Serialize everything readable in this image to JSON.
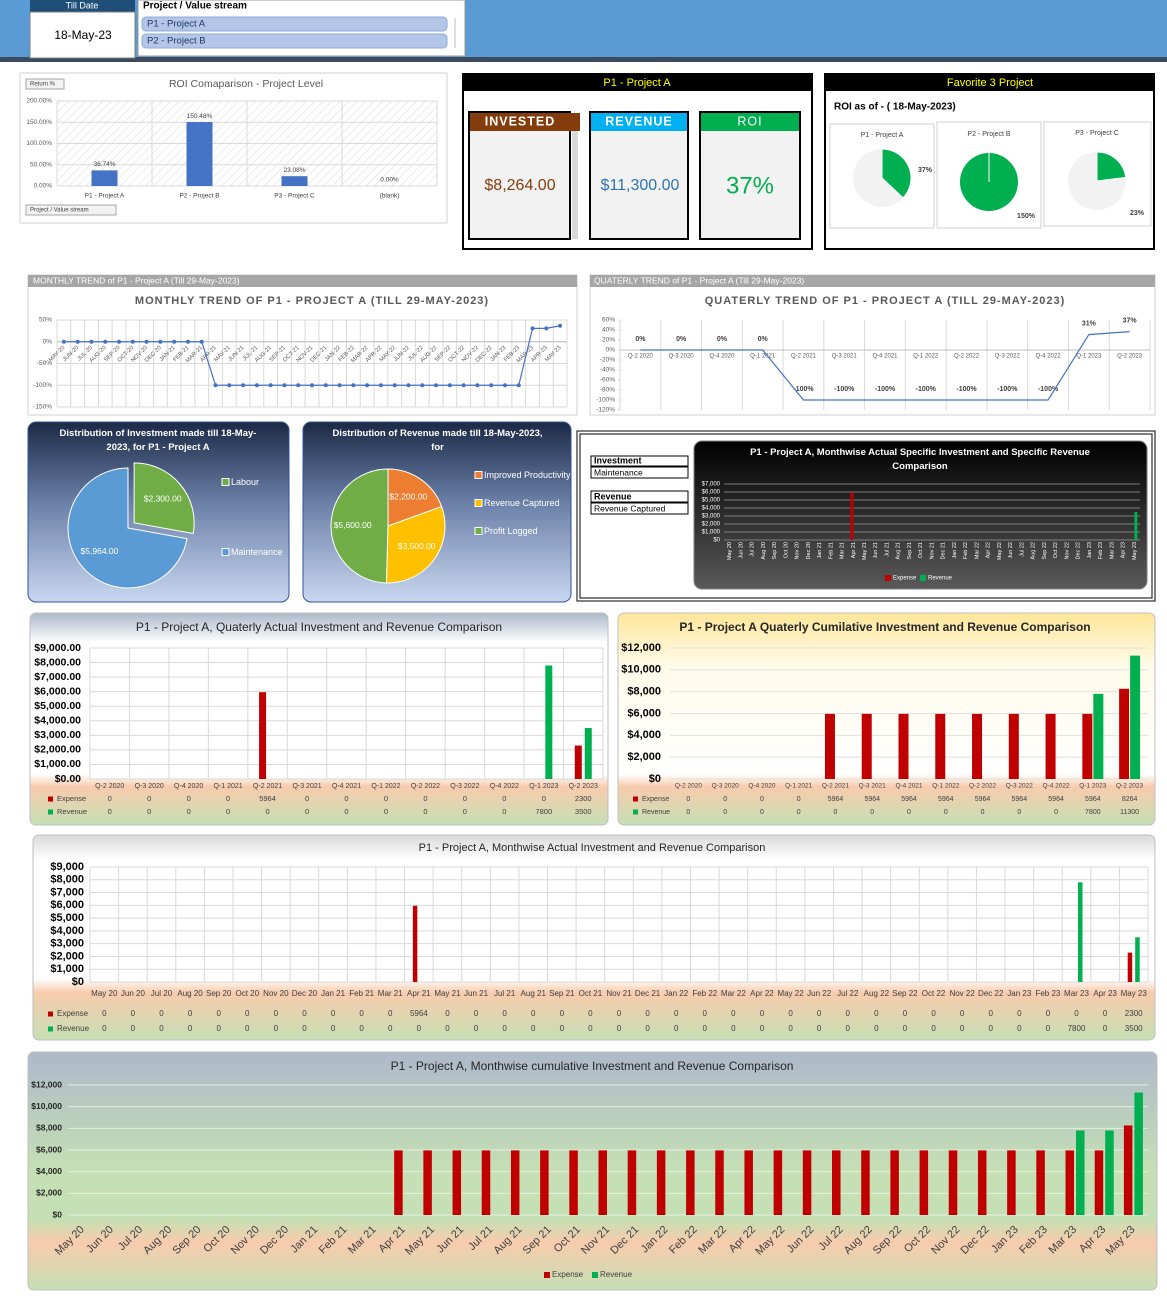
{
  "header": {
    "till_date_label": "Till Date",
    "till_date": "18-May-23",
    "slicer_title": "Project / Value stream",
    "slicer_items": [
      "P1 - Project A",
      "P2 - Project B"
    ]
  },
  "kpi": {
    "title": "P1 - Project A",
    "cards": [
      {
        "label": "INVESTED",
        "value": "$8,264.00"
      },
      {
        "label": "REVENUE",
        "value": "$11,300.00"
      },
      {
        "label": "ROI",
        "value": "37%"
      }
    ]
  },
  "favorites": {
    "title": "Favorite 3 Project",
    "subtitle": "ROI as of -  ( 18-May-2023)"
  },
  "filters": [
    {
      "label": "Investment",
      "value": "Maintenance"
    },
    {
      "label": "Revenue",
      "value": "Revenue Captured"
    }
  ],
  "chart_data": [
    {
      "type": "bar",
      "title": "ROI Comaparison - Project Level",
      "field_buttons": [
        "Return %",
        "Project / Value stream"
      ],
      "categories": [
        "P1 - Project A",
        "P2 - Project B",
        "P3 - Project C",
        "(blank)"
      ],
      "values": [
        36.74,
        150.48,
        23.08,
        0
      ],
      "value_labels": [
        "36.74%",
        "150.48%",
        "23.08%",
        "0.00%"
      ],
      "color": "#4472c4",
      "ylim": [
        0,
        200
      ],
      "yticks": [
        {
          "value": 0,
          "label": "0.00%"
        },
        {
          "value": 50,
          "label": "50.00%"
        },
        {
          "value": 100,
          "label": "100.00%"
        },
        {
          "value": 150,
          "label": "150.00%"
        },
        {
          "value": 200,
          "label": "200.00%"
        }
      ],
      "grid": true
    },
    {
      "type": "pie",
      "title": "P1 - Project A",
      "values": [
        37
      ],
      "value_labels": [
        "37%"
      ],
      "color": "#00b050"
    },
    {
      "type": "pie",
      "title": "P2 - Project B",
      "values": [
        150
      ],
      "value_labels": [
        "150%"
      ],
      "color": "#00b050"
    },
    {
      "type": "pie",
      "title": "P3 - Project C",
      "values": [
        23
      ],
      "value_labels": [
        "23%"
      ],
      "color": "#00b050"
    },
    {
      "type": "line",
      "header": "MONTHLY TREND of P1 - Project A (Till 29-May-2023)",
      "title": "MONTHLY TREND OF P1 - PROJECT A (TILL 29-MAY-2023)",
      "categories": [
        "MAY-20",
        "JUN-20",
        "JUL-20",
        "AUG-20",
        "SEP-20",
        "OCT-20",
        "NOV-20",
        "DEC-20",
        "JAN-21",
        "FEB-21",
        "MAR-21",
        "APR-21",
        "MAY-21",
        "JUN-21",
        "JUL-21",
        "AUG-21",
        "SEP-21",
        "OCT-21",
        "NOV-21",
        "DEC-21",
        "JAN-22",
        "FEB-22",
        "MAR-22",
        "APR-22",
        "MAY-22",
        "JUN-22",
        "JUL-22",
        "AUG-22",
        "SEP-22",
        "OCT-22",
        "NOV-22",
        "DEC-22",
        "JAN-23",
        "FEB-23",
        "MAR-23",
        "APR-23",
        "MAY-23"
      ],
      "values": [
        0,
        0,
        0,
        0,
        0,
        0,
        0,
        0,
        0,
        0,
        0,
        -100,
        -100,
        -100,
        -100,
        -100,
        -100,
        -100,
        -100,
        -100,
        -100,
        -100,
        -100,
        -100,
        -100,
        -100,
        -100,
        -100,
        -100,
        -100,
        -100,
        -100,
        -100,
        -100,
        30.78,
        30.78,
        36.74
      ],
      "color": "#4472c4",
      "markers": true,
      "ylim": [
        -150,
        50
      ],
      "yticks": [
        {
          "value": -150,
          "label": "-150%"
        },
        {
          "value": -100,
          "label": "-100%"
        },
        {
          "value": -50,
          "label": "-50%"
        },
        {
          "value": 0,
          "label": "0%"
        },
        {
          "value": 50,
          "label": "50%"
        }
      ],
      "grid": true
    },
    {
      "type": "line",
      "header": "QUATERLY TREND of P1 - Project A (Till 29-May-2023)",
      "title": "QUATERLY TREND OF P1 - PROJECT A (TILL 29-MAY-2023)",
      "categories": [
        "Q-2 2020",
        "Q-3 2020",
        "Q-4 2020",
        "Q-1 2021",
        "Q-2 2021",
        "Q-3 2021",
        "Q-4 2021",
        "Q-1 2022",
        "Q-2 2022",
        "Q-3 2022",
        "Q-4 2022",
        "Q-1 2023",
        "Q-2 2023"
      ],
      "values": [
        0,
        0,
        0,
        0,
        -100,
        -100,
        -100,
        -100,
        -100,
        -100,
        -100,
        30.78,
        36.74
      ],
      "value_labels": [
        "0%",
        "0%",
        "0%",
        "0%",
        "-100%",
        "-100%",
        "-100%",
        "-100%",
        "-100%",
        "-100%",
        "-100%",
        "31%",
        "37%"
      ],
      "color": "#4472c4",
      "markers": false,
      "ylim": [
        -120,
        60
      ],
      "yticks": [
        {
          "value": -120,
          "label": "-120%"
        },
        {
          "value": -100,
          "label": "-100%"
        },
        {
          "value": -80,
          "label": "-80%"
        },
        {
          "value": -60,
          "label": "-60%"
        },
        {
          "value": -40,
          "label": "-40%"
        },
        {
          "value": -20,
          "label": "-20%"
        },
        {
          "value": 0,
          "label": "0%"
        },
        {
          "value": 20,
          "label": "20%"
        },
        {
          "value": 40,
          "label": "40%"
        },
        {
          "value": 60,
          "label": "60%"
        }
      ],
      "grid": false
    },
    {
      "type": "pie",
      "title": "Distribution of Investment made till 18-May-2023, for P1 - Project A",
      "categories": [
        "Labour",
        "Maintenance"
      ],
      "values": [
        2300,
        5964
      ],
      "value_labels": [
        "$2,300.00",
        "$5,964.00"
      ],
      "colors": [
        "#70ad47",
        "#5b9bd5"
      ]
    },
    {
      "type": "pie",
      "title": "Distribution of Revenue made till 18-May-2023, for",
      "categories": [
        "Improved Productivity",
        "Revenue Captured",
        "Profit Logged"
      ],
      "values": [
        2200,
        3500,
        5600
      ],
      "value_labels": [
        "$2,200.00",
        "$3,500.00",
        "$5,600.00"
      ],
      "colors": [
        "#ed7d31",
        "#ffc000",
        "#70ad47"
      ]
    },
    {
      "type": "bar",
      "title": "P1 - Project A, Monthwise Actual Specific Investment and Specific Revenue Comparison",
      "categories": [
        "May 20",
        "Jun 20",
        "Jul 20",
        "Aug 20",
        "Sep 20",
        "Oct 20",
        "Nov 20",
        "Dec 20",
        "Jan 21",
        "Feb 21",
        "Mar 21",
        "Apr 21",
        "May 21",
        "Jun 21",
        "Jul 21",
        "Aug 21",
        "Sep 21",
        "Oct 21",
        "Nov 21",
        "Dec 21",
        "Jan 22",
        "Feb 22",
        "Mar 22",
        "Apr 22",
        "May 22",
        "Jun 22",
        "Jul 22",
        "Aug 22",
        "Sep 22",
        "Oct 22",
        "Nov 22",
        "Dec 22",
        "Jan 23",
        "Feb 23",
        "Mar 23",
        "Apr 23",
        "May 23"
      ],
      "series": [
        {
          "name": "Expense",
          "color": "#c00000",
          "values": [
            0,
            0,
            0,
            0,
            0,
            0,
            0,
            0,
            0,
            0,
            0,
            5964,
            0,
            0,
            0,
            0,
            0,
            0,
            0,
            0,
            0,
            0,
            0,
            0,
            0,
            0,
            0,
            0,
            0,
            0,
            0,
            0,
            0,
            0,
            0,
            0,
            0
          ]
        },
        {
          "name": "Revenue",
          "color": "#00b050",
          "values": [
            0,
            0,
            0,
            0,
            0,
            0,
            0,
            0,
            0,
            0,
            0,
            0,
            0,
            0,
            0,
            0,
            0,
            0,
            0,
            0,
            0,
            0,
            0,
            0,
            0,
            0,
            0,
            0,
            0,
            0,
            0,
            0,
            0,
            0,
            0,
            0,
            3500
          ]
        }
      ],
      "ylim": [
        0,
        7000
      ],
      "yticks": [
        {
          "value": 0,
          "label": "$0"
        },
        {
          "value": 1000,
          "label": "$1,000"
        },
        {
          "value": 2000,
          "label": "$2,000"
        },
        {
          "value": 3000,
          "label": "$3,000"
        },
        {
          "value": 4000,
          "label": "$4,000"
        },
        {
          "value": 5000,
          "label": "$5,000"
        },
        {
          "value": 6000,
          "label": "$6,000"
        },
        {
          "value": 7000,
          "label": "$7,000"
        }
      ],
      "grid": true,
      "legend": "bottom"
    },
    {
      "type": "bar",
      "title": "P1 - Project A, Quaterly Actual Investment and Revenue Comparison",
      "categories": [
        "Q-2 2020",
        "Q-3 2020",
        "Q-4 2020",
        "Q-1 2021",
        "Q-2 2021",
        "Q-3 2021",
        "Q-4 2021",
        "Q-1 2022",
        "Q-2 2022",
        "Q-3 2022",
        "Q-4 2022",
        "Q-1 2023",
        "Q-2 2023"
      ],
      "series": [
        {
          "name": "Expense",
          "color": "#c00000",
          "values": [
            0,
            0,
            0,
            0,
            5964,
            0,
            0,
            0,
            0,
            0,
            0,
            0,
            2300
          ]
        },
        {
          "name": "Revenue",
          "color": "#00b050",
          "values": [
            0,
            0,
            0,
            0,
            0,
            0,
            0,
            0,
            0,
            0,
            0,
            7800,
            3500
          ]
        }
      ],
      "ylim": [
        0,
        9000
      ],
      "yticks": [
        {
          "value": 0,
          "label": "$0.00"
        },
        {
          "value": 1000,
          "label": "$1,000.00"
        },
        {
          "value": 2000,
          "label": "$2,000.00"
        },
        {
          "value": 3000,
          "label": "$3,000.00"
        },
        {
          "value": 4000,
          "label": "$4,000.00"
        },
        {
          "value": 5000,
          "label": "$5,000.00"
        },
        {
          "value": 6000,
          "label": "$6,000.00"
        },
        {
          "value": 7000,
          "label": "$7,000.00"
        },
        {
          "value": 8000,
          "label": "$8,000.00"
        },
        {
          "value": 9000,
          "label": "$9,000.00"
        }
      ],
      "grid": true,
      "data_table": true
    },
    {
      "type": "bar",
      "title": "P1 - Project A Quaterly Cumilative Investment and Revenue Comparison",
      "categories": [
        "Q-2 2020",
        "Q-3 2020",
        "Q-4 2020",
        "Q-1 2021",
        "Q-2 2021",
        "Q-3 2021",
        "Q-4 2021",
        "Q-1 2022",
        "Q-2 2022",
        "Q-3 2022",
        "Q-4 2022",
        "Q-1 2023",
        "Q-2 2023"
      ],
      "series": [
        {
          "name": "Expense",
          "color": "#c00000",
          "values": [
            0,
            0,
            0,
            0,
            5964,
            5964,
            5964,
            5964,
            5964,
            5964,
            5964,
            5964,
            8264
          ]
        },
        {
          "name": "Revenue",
          "color": "#00b050",
          "values": [
            0,
            0,
            0,
            0,
            0,
            0,
            0,
            0,
            0,
            0,
            0,
            7800,
            11300
          ]
        }
      ],
      "ylim": [
        0,
        12000
      ],
      "yticks": [
        {
          "value": 0,
          "label": "$0"
        },
        {
          "value": 2000,
          "label": "$2,000"
        },
        {
          "value": 4000,
          "label": "$4,000"
        },
        {
          "value": 6000,
          "label": "$6,000"
        },
        {
          "value": 8000,
          "label": "$8,000"
        },
        {
          "value": 10000,
          "label": "$10,000"
        },
        {
          "value": 12000,
          "label": "$12,000"
        }
      ],
      "grid": true,
      "data_table": true
    },
    {
      "type": "bar",
      "title": "P1 - Project A, Monthwise Actual Investment and Revenue Comparison",
      "categories": [
        "May 20",
        "Jun 20",
        "Jul 20",
        "Aug 20",
        "Sep 20",
        "Oct 20",
        "Nov 20",
        "Dec 20",
        "Jan 21",
        "Feb 21",
        "Mar 21",
        "Apr 21",
        "May 21",
        "Jun 21",
        "Jul 21",
        "Aug 21",
        "Sep 21",
        "Oct 21",
        "Nov 21",
        "Dec 21",
        "Jan 22",
        "Feb 22",
        "Mar 22",
        "Apr 22",
        "May 22",
        "Jun 22",
        "Jul 22",
        "Aug 22",
        "Sep 22",
        "Oct 22",
        "Nov 22",
        "Dec 22",
        "Jan 23",
        "Feb 23",
        "Mar 23",
        "Apr 23",
        "May 23"
      ],
      "series": [
        {
          "name": "Expense",
          "color": "#c00000",
          "values": [
            0,
            0,
            0,
            0,
            0,
            0,
            0,
            0,
            0,
            0,
            0,
            5964,
            0,
            0,
            0,
            0,
            0,
            0,
            0,
            0,
            0,
            0,
            0,
            0,
            0,
            0,
            0,
            0,
            0,
            0,
            0,
            0,
            0,
            0,
            0,
            0,
            2300
          ]
        },
        {
          "name": "Revenue",
          "color": "#00b050",
          "values": [
            0,
            0,
            0,
            0,
            0,
            0,
            0,
            0,
            0,
            0,
            0,
            0,
            0,
            0,
            0,
            0,
            0,
            0,
            0,
            0,
            0,
            0,
            0,
            0,
            0,
            0,
            0,
            0,
            0,
            0,
            0,
            0,
            0,
            0,
            7800,
            0,
            3500
          ]
        }
      ],
      "ylim": [
        0,
        9000
      ],
      "yticks": [
        {
          "value": 0,
          "label": "$0"
        },
        {
          "value": 1000,
          "label": "$1,000"
        },
        {
          "value": 2000,
          "label": "$2,000"
        },
        {
          "value": 3000,
          "label": "$3,000"
        },
        {
          "value": 4000,
          "label": "$4,000"
        },
        {
          "value": 5000,
          "label": "$5,000"
        },
        {
          "value": 6000,
          "label": "$6,000"
        },
        {
          "value": 7000,
          "label": "$7,000"
        },
        {
          "value": 8000,
          "label": "$8,000"
        },
        {
          "value": 9000,
          "label": "$9,000"
        }
      ],
      "grid": true,
      "data_table": true
    },
    {
      "type": "bar",
      "title": "P1 - Project A, Monthwise cumulative Investment and Revenue Comparison",
      "categories": [
        "May 20",
        "Jun 20",
        "Jul 20",
        "Aug 20",
        "Sep 20",
        "Oct 20",
        "Nov 20",
        "Dec 20",
        "Jan 21",
        "Feb 21",
        "Mar 21",
        "Apr 21",
        "May 21",
        "Jun 21",
        "Jul 21",
        "Aug 21",
        "Sep 21",
        "Oct 21",
        "Nov 21",
        "Dec 21",
        "Jan 22",
        "Feb 22",
        "Mar 22",
        "Apr 22",
        "May 22",
        "Jun 22",
        "Jul 22",
        "Aug 22",
        "Sep 22",
        "Oct 22",
        "Nov 22",
        "Dec 22",
        "Jan 23",
        "Feb 23",
        "Mar 23",
        "Apr 23",
        "May 23"
      ],
      "series": [
        {
          "name": "Expense",
          "color": "#c00000",
          "values": [
            0,
            0,
            0,
            0,
            0,
            0,
            0,
            0,
            0,
            0,
            0,
            5964,
            5964,
            5964,
            5964,
            5964,
            5964,
            5964,
            5964,
            5964,
            5964,
            5964,
            5964,
            5964,
            5964,
            5964,
            5964,
            5964,
            5964,
            5964,
            5964,
            5964,
            5964,
            5964,
            5964,
            5964,
            8264
          ]
        },
        {
          "name": "Revenue",
          "color": "#00b050",
          "values": [
            0,
            0,
            0,
            0,
            0,
            0,
            0,
            0,
            0,
            0,
            0,
            0,
            0,
            0,
            0,
            0,
            0,
            0,
            0,
            0,
            0,
            0,
            0,
            0,
            0,
            0,
            0,
            0,
            0,
            0,
            0,
            0,
            0,
            0,
            7800,
            7800,
            11300
          ]
        }
      ],
      "ylim": [
        0,
        12000
      ],
      "yticks": [
        {
          "value": 0,
          "label": "$0"
        },
        {
          "value": 2000,
          "label": "$2,000"
        },
        {
          "value": 4000,
          "label": "$4,000"
        },
        {
          "value": 6000,
          "label": "$6,000"
        },
        {
          "value": 8000,
          "label": "$8,000"
        },
        {
          "value": 10000,
          "label": "$10,000"
        },
        {
          "value": 12000,
          "label": "$12,000"
        }
      ],
      "grid": true,
      "legend": "bottom"
    }
  ]
}
